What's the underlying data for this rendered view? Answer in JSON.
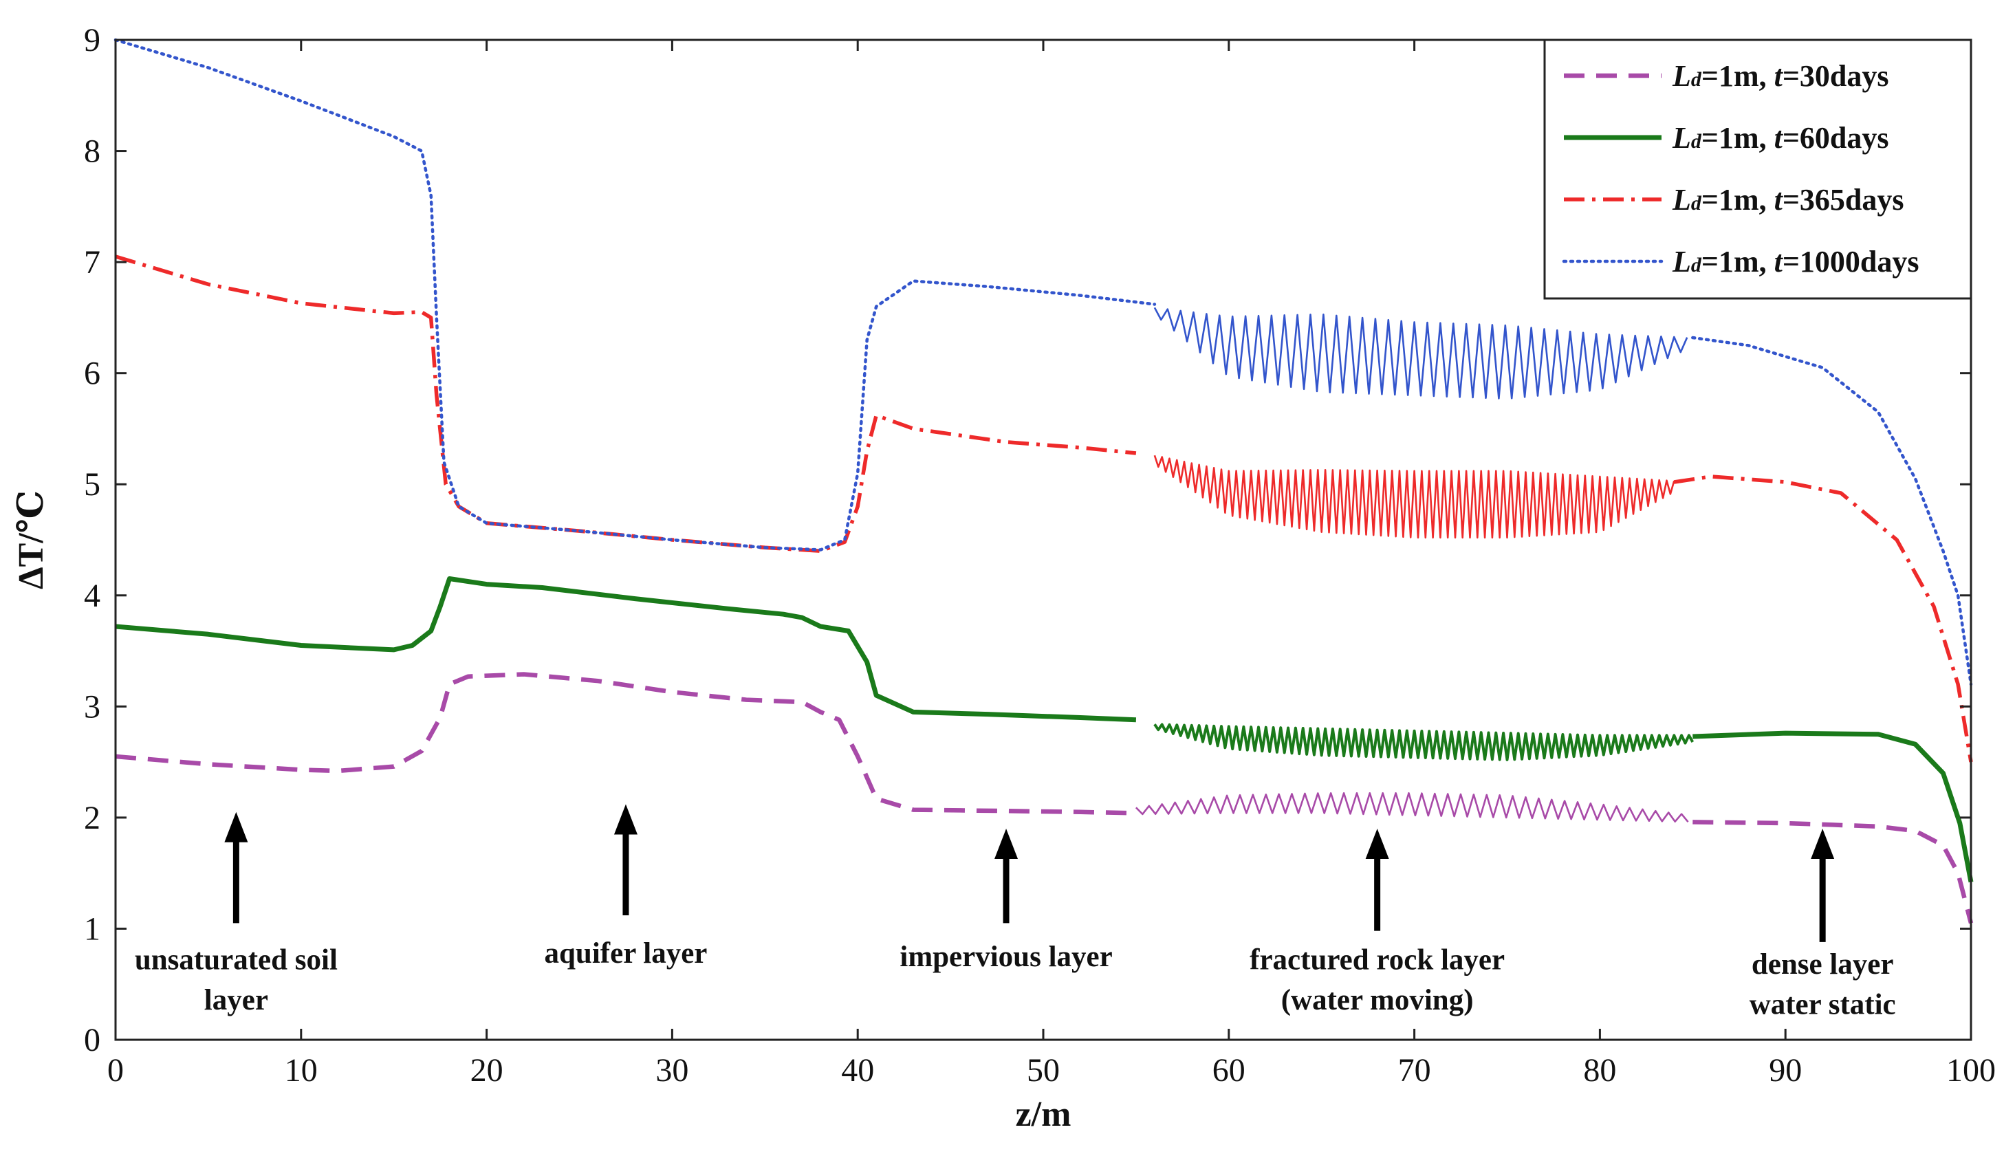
{
  "chart_data": {
    "type": "line",
    "title": "",
    "xlabel": "z/m",
    "ylabel": "ΔT/℃",
    "xlim": [
      0,
      100
    ],
    "ylim": [
      0,
      9
    ],
    "xticks": [
      0,
      10,
      20,
      30,
      40,
      50,
      60,
      70,
      80,
      90,
      100
    ],
    "yticks": [
      0,
      1,
      2,
      3,
      4,
      5,
      6,
      7,
      8,
      9
    ],
    "grid": false,
    "legend_position": "top-right",
    "series": [
      {
        "name": "Ld=1m, t=30days",
        "legend": {
          "sym": "L",
          "sub": "d",
          "mid": "=1m, ",
          "var": "t",
          "tail": "=30days"
        },
        "color": "#a84aa8",
        "style": "dashed",
        "points": [
          [
            0,
            2.55
          ],
          [
            5,
            2.48
          ],
          [
            10,
            2.43
          ],
          [
            12,
            2.42
          ],
          [
            15,
            2.46
          ],
          [
            16.5,
            2.6
          ],
          [
            17.5,
            2.9
          ],
          [
            18,
            3.2
          ],
          [
            19,
            3.27
          ],
          [
            22,
            3.29
          ],
          [
            26,
            3.23
          ],
          [
            30,
            3.13
          ],
          [
            34,
            3.06
          ],
          [
            37,
            3.04
          ],
          [
            38,
            2.95
          ],
          [
            39,
            2.88
          ],
          [
            40,
            2.55
          ],
          [
            41,
            2.17
          ],
          [
            43,
            2.07
          ],
          [
            48,
            2.06
          ],
          [
            52,
            2.05
          ],
          [
            55,
            2.04
          ]
        ],
        "band": {
          "x0": 55,
          "x1": 85,
          "center": [
            [
              55,
              2.06
            ],
            [
              60,
              2.12
            ],
            [
              65,
              2.13
            ],
            [
              70,
              2.12
            ],
            [
              75,
              2.1
            ],
            [
              80,
              2.05
            ],
            [
              85,
              1.99
            ]
          ],
          "half": [
            [
              55,
              0.03
            ],
            [
              60,
              0.08
            ],
            [
              65,
              0.09
            ],
            [
              70,
              0.1
            ],
            [
              75,
              0.1
            ],
            [
              80,
              0.07
            ],
            [
              85,
              0.03
            ]
          ],
          "step": 0.35
        },
        "tail": [
          [
            85,
            1.96
          ],
          [
            90,
            1.95
          ],
          [
            95,
            1.92
          ],
          [
            97,
            1.88
          ],
          [
            98.5,
            1.75
          ],
          [
            99.3,
            1.5
          ],
          [
            100,
            1.05
          ]
        ]
      },
      {
        "name": "Ld=1m, t=60days",
        "legend": {
          "sym": "L",
          "sub": "d",
          "mid": "=1m, ",
          "var": "t",
          "tail": "=60days"
        },
        "color": "#1a7a1a",
        "style": "solid",
        "points": [
          [
            0,
            3.72
          ],
          [
            5,
            3.65
          ],
          [
            10,
            3.55
          ],
          [
            15,
            3.51
          ],
          [
            16,
            3.55
          ],
          [
            17,
            3.68
          ],
          [
            17.5,
            3.9
          ],
          [
            18,
            4.15
          ],
          [
            20,
            4.1
          ],
          [
            23,
            4.07
          ],
          [
            28,
            3.97
          ],
          [
            33,
            3.88
          ],
          [
            36,
            3.83
          ],
          [
            37,
            3.8
          ],
          [
            38,
            3.72
          ],
          [
            39.5,
            3.68
          ],
          [
            40.5,
            3.4
          ],
          [
            41,
            3.1
          ],
          [
            43,
            2.95
          ],
          [
            47,
            2.93
          ],
          [
            52,
            2.9
          ],
          [
            55,
            2.88
          ]
        ],
        "band": {
          "x0": 56,
          "x1": 85,
          "center": [
            [
              56,
              2.82
            ],
            [
              60,
              2.72
            ],
            [
              65,
              2.68
            ],
            [
              70,
              2.66
            ],
            [
              75,
              2.64
            ],
            [
              80,
              2.65
            ],
            [
              85,
              2.71
            ]
          ],
          "half": [
            [
              56,
              0.02
            ],
            [
              60,
              0.1
            ],
            [
              65,
              0.12
            ],
            [
              70,
              0.12
            ],
            [
              75,
              0.12
            ],
            [
              80,
              0.09
            ],
            [
              85,
              0.03
            ]
          ],
          "step": 0.2
        },
        "tail": [
          [
            85,
            2.73
          ],
          [
            90,
            2.76
          ],
          [
            95,
            2.75
          ],
          [
            97,
            2.66
          ],
          [
            98.5,
            2.4
          ],
          [
            99.4,
            1.95
          ],
          [
            100,
            1.42
          ]
        ]
      },
      {
        "name": "Ld=1m, t=365days",
        "legend": {
          "sym": "L",
          "sub": "d",
          "mid": "=1m, ",
          "var": "t",
          "tail": "=365days"
        },
        "color": "#ee2a2a",
        "style": "dashdot",
        "points": [
          [
            0,
            7.05
          ],
          [
            5,
            6.8
          ],
          [
            10,
            6.63
          ],
          [
            15,
            6.54
          ],
          [
            16.5,
            6.55
          ],
          [
            17,
            6.5
          ],
          [
            17.3,
            5.8
          ],
          [
            17.8,
            5.0
          ],
          [
            18.5,
            4.8
          ],
          [
            20,
            4.65
          ],
          [
            25,
            4.58
          ],
          [
            30,
            4.5
          ],
          [
            35,
            4.43
          ],
          [
            38,
            4.4
          ],
          [
            39.3,
            4.48
          ],
          [
            40,
            4.8
          ],
          [
            40.5,
            5.3
          ],
          [
            41,
            5.62
          ],
          [
            43,
            5.5
          ],
          [
            48,
            5.38
          ],
          [
            52,
            5.33
          ],
          [
            55,
            5.28
          ]
        ],
        "band": {
          "x0": 56,
          "x1": 84,
          "center": [
            [
              56,
              5.22
            ],
            [
              60,
              4.92
            ],
            [
              65,
              4.85
            ],
            [
              70,
              4.82
            ],
            [
              75,
              4.82
            ],
            [
              80,
              4.82
            ],
            [
              84,
              4.98
            ]
          ],
          "half": [
            [
              56,
              0.04
            ],
            [
              60,
              0.2
            ],
            [
              65,
              0.28
            ],
            [
              70,
              0.3
            ],
            [
              75,
              0.3
            ],
            [
              80,
              0.25
            ],
            [
              84,
              0.05
            ]
          ],
          "step": 0.2
        },
        "tail": [
          [
            84,
            5.02
          ],
          [
            86,
            5.07
          ],
          [
            90,
            5.02
          ],
          [
            93,
            4.92
          ],
          [
            96,
            4.5
          ],
          [
            98,
            3.9
          ],
          [
            99.3,
            3.2
          ],
          [
            100,
            2.5
          ]
        ]
      },
      {
        "name": "Ld=1m, t=1000days",
        "legend": {
          "sym": "L",
          "sub": "d",
          "mid": "=1m, ",
          "var": "t",
          "tail": "=1000days"
        },
        "color": "#3355cc",
        "style": "dotted",
        "points": [
          [
            0,
            9.0
          ],
          [
            5,
            8.75
          ],
          [
            10,
            8.45
          ],
          [
            15,
            8.13
          ],
          [
            16.5,
            8.0
          ],
          [
            17,
            7.6
          ],
          [
            17.3,
            6.5
          ],
          [
            17.7,
            5.2
          ],
          [
            18.5,
            4.8
          ],
          [
            20,
            4.65
          ],
          [
            25,
            4.58
          ],
          [
            30,
            4.5
          ],
          [
            35,
            4.43
          ],
          [
            38,
            4.41
          ],
          [
            39.3,
            4.5
          ],
          [
            40,
            5.1
          ],
          [
            40.5,
            6.3
          ],
          [
            41,
            6.6
          ],
          [
            43,
            6.83
          ],
          [
            47,
            6.78
          ],
          [
            52,
            6.7
          ],
          [
            56,
            6.62
          ]
        ],
        "band": {
          "x0": 56,
          "x1": 85,
          "center": [
            [
              56,
              6.56
            ],
            [
              60,
              6.24
            ],
            [
              65,
              6.18
            ],
            [
              70,
              6.13
            ],
            [
              75,
              6.1
            ],
            [
              80,
              6.1
            ],
            [
              85,
              6.28
            ]
          ],
          "half": [
            [
              56,
              0.03
            ],
            [
              60,
              0.27
            ],
            [
              65,
              0.35
            ],
            [
              70,
              0.33
            ],
            [
              75,
              0.33
            ],
            [
              80,
              0.25
            ],
            [
              85,
              0.04
            ]
          ],
          "step": 0.35
        },
        "tail": [
          [
            85,
            6.32
          ],
          [
            88,
            6.25
          ],
          [
            92,
            6.05
          ],
          [
            95,
            5.65
          ],
          [
            97,
            5.05
          ],
          [
            98.5,
            4.4
          ],
          [
            99.3,
            4.0
          ],
          [
            100,
            3.2
          ]
        ]
      }
    ],
    "annotations": [
      {
        "x": 6.5,
        "arrow_from": 1.05,
        "arrow_to": 2.05,
        "lines": [
          "unsaturated soil",
          "layer"
        ],
        "text_y": 0.72,
        "line_gap": 0.36
      },
      {
        "x": 27.5,
        "arrow_from": 1.12,
        "arrow_to": 2.12,
        "lines": [
          "aquifer layer"
        ],
        "text_y": 0.78,
        "line_gap": 0.36
      },
      {
        "x": 48,
        "arrow_from": 1.05,
        "arrow_to": 1.9,
        "lines": [
          "impervious layer"
        ],
        "text_y": 0.75,
        "line_gap": 0.36
      },
      {
        "x": 68,
        "arrow_from": 0.98,
        "arrow_to": 1.9,
        "lines": [
          "fractured rock layer",
          "(water moving)"
        ],
        "text_y": 0.72,
        "line_gap": 0.36
      },
      {
        "x": 92,
        "arrow_from": 0.88,
        "arrow_to": 1.9,
        "lines": [
          "dense layer",
          "water static"
        ],
        "text_y": 0.68,
        "line_gap": 0.36
      }
    ]
  }
}
